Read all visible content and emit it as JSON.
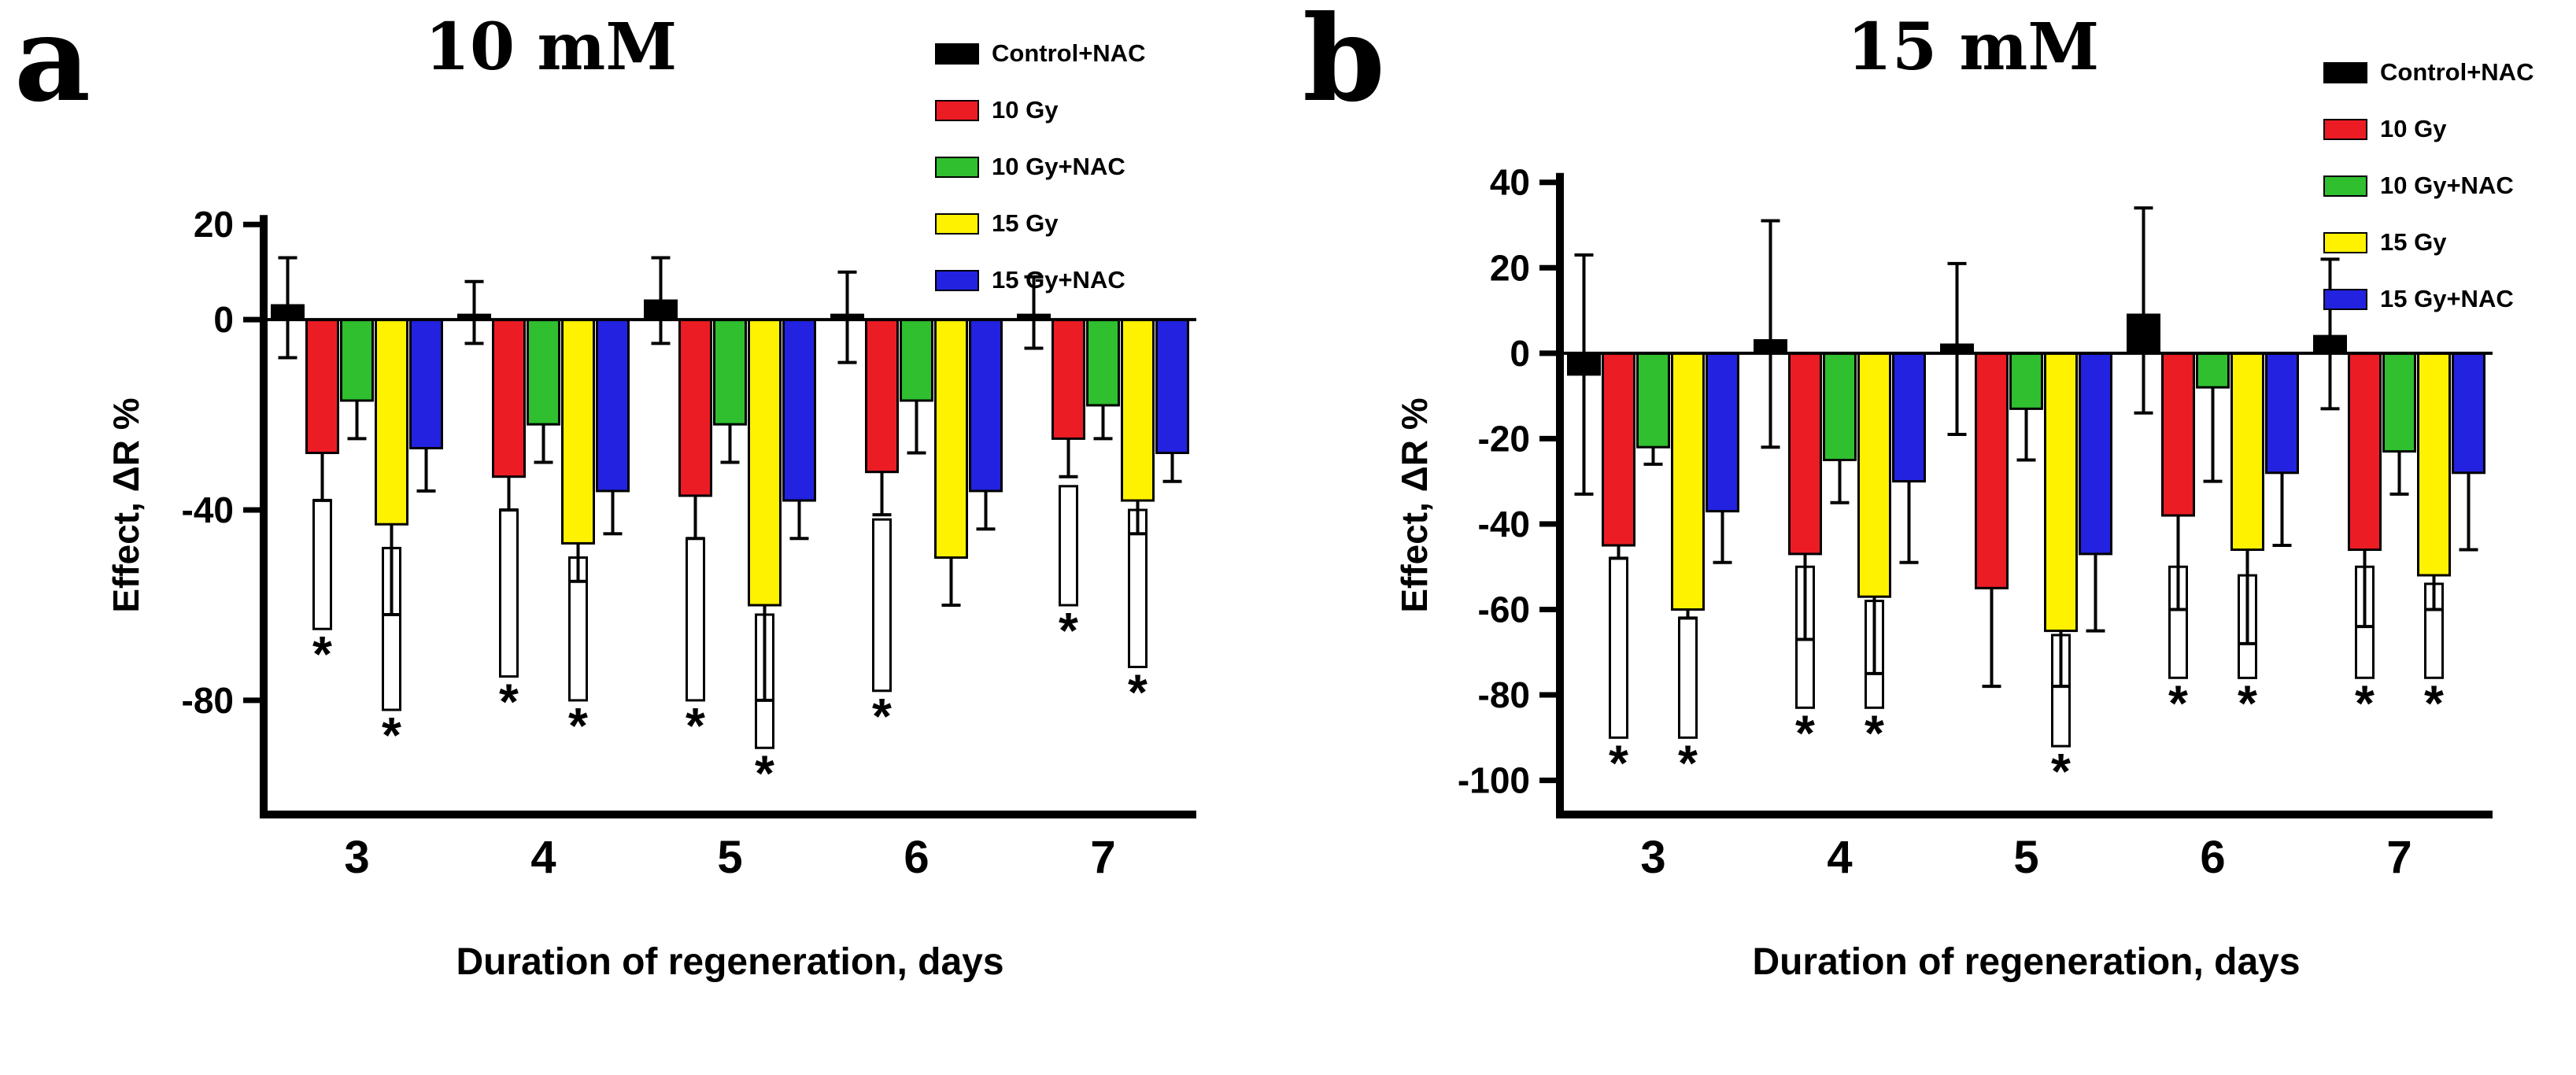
{
  "figure": {
    "legend": {
      "items": [
        {
          "label": "Control+NAC",
          "color": "#000000"
        },
        {
          "label": "10 Gy",
          "color": "#ec1c24"
        },
        {
          "label": "10 Gy+NAC",
          "color": "#2fbf2f"
        },
        {
          "label": "15 Gy",
          "color": "#fff200"
        },
        {
          "label": "15 Gy+NAC",
          "color": "#2222e0"
        }
      ]
    }
  },
  "chart_data": [
    {
      "type": "bar",
      "panel_letter": "a",
      "title": "10 mM",
      "xlabel": "Duration of regeneration, days",
      "ylabel": "Effect, ΔR %",
      "categories": [
        "3",
        "4",
        "5",
        "6",
        "7"
      ],
      "ylim": [
        -104,
        25
      ],
      "yticks": [
        20,
        0,
        -40,
        -80
      ],
      "grid": false,
      "legend_position": "top-right",
      "series": [
        {
          "name": "Control+NAC",
          "color": "#000000",
          "values": [
            3,
            1,
            4,
            1,
            1
          ],
          "err_low": [
            -8,
            -5,
            -5,
            -9,
            -6
          ],
          "err_high": [
            13,
            8,
            13,
            10,
            9
          ]
        },
        {
          "name": "10 Gy",
          "color": "#ec1c24",
          "values": [
            -28,
            -33,
            -37,
            -32,
            -25
          ],
          "err_low": [
            -38,
            -40,
            -46,
            -41,
            -33
          ]
        },
        {
          "name": "10 Gy+NAC",
          "color": "#2fbf2f",
          "values": [
            -17,
            -22,
            -22,
            -17,
            -18
          ],
          "err_low": [
            -25,
            -30,
            -30,
            -28,
            -25
          ]
        },
        {
          "name": "15 Gy",
          "color": "#fff200",
          "values": [
            -43,
            -47,
            -60,
            -50,
            -38
          ],
          "err_low": [
            -62,
            -55,
            -80,
            -60,
            -45
          ]
        },
        {
          "name": "15 Gy+NAC",
          "color": "#2222e0",
          "values": [
            -27,
            -36,
            -38,
            -36,
            -28
          ],
          "err_low": [
            -36,
            -45,
            -46,
            -44,
            -34
          ]
        }
      ],
      "significance": [
        {
          "group": 0,
          "offset": -1,
          "from": -38,
          "to": -65,
          "label": "*"
        },
        {
          "group": 0,
          "offset": 1,
          "from": -48,
          "to": -82,
          "label": "*"
        },
        {
          "group": 1,
          "offset": -1,
          "from": -40,
          "to": -75,
          "label": "*"
        },
        {
          "group": 1,
          "offset": 1,
          "from": -50,
          "to": -80,
          "label": "*"
        },
        {
          "group": 2,
          "offset": -1,
          "from": -46,
          "to": -80,
          "label": "*"
        },
        {
          "group": 2,
          "offset": 1,
          "from": -62,
          "to": -90,
          "label": "*"
        },
        {
          "group": 3,
          "offset": -1,
          "from": -42,
          "to": -78,
          "label": "*"
        },
        {
          "group": 4,
          "offset": -1,
          "from": -35,
          "to": -60,
          "label": "*"
        },
        {
          "group": 4,
          "offset": 1,
          "from": -40,
          "to": -73,
          "label": "*"
        }
      ]
    },
    {
      "type": "bar",
      "panel_letter": "b",
      "title": "15 mM",
      "xlabel": "Duration of regeneration, days",
      "ylabel": "Effect, ΔR %",
      "categories": [
        "3",
        "4",
        "5",
        "6",
        "7"
      ],
      "ylim": [
        -108,
        44
      ],
      "yticks": [
        40,
        20,
        0,
        -20,
        -40,
        -60,
        -80,
        -100
      ],
      "grid": false,
      "legend_position": "top-right",
      "series": [
        {
          "name": "Control+NAC",
          "color": "#000000",
          "values": [
            -5,
            3,
            2,
            9,
            4
          ],
          "err_low": [
            -33,
            -22,
            -19,
            -14,
            -13
          ],
          "err_high": [
            23,
            31,
            21,
            34,
            22
          ]
        },
        {
          "name": "10 Gy",
          "color": "#ec1c24",
          "values": [
            -45,
            -47,
            -55,
            -38,
            -46
          ],
          "err_low": [
            -48,
            -67,
            -78,
            -60,
            -64
          ]
        },
        {
          "name": "10 Gy+NAC",
          "color": "#2fbf2f",
          "values": [
            -22,
            -25,
            -13,
            -8,
            -23
          ],
          "err_low": [
            -26,
            -35,
            -25,
            -30,
            -33
          ]
        },
        {
          "name": "15 Gy",
          "color": "#fff200",
          "values": [
            -60,
            -57,
            -65,
            -46,
            -52
          ],
          "err_low": [
            -62,
            -75,
            -78,
            -68,
            -60
          ]
        },
        {
          "name": "15 Gy+NAC",
          "color": "#2222e0",
          "values": [
            -37,
            -30,
            -47,
            -28,
            -28
          ],
          "err_low": [
            -49,
            -49,
            -65,
            -45,
            -46
          ]
        }
      ],
      "significance": [
        {
          "group": 0,
          "offset": -1,
          "from": -48,
          "to": -90,
          "label": "*"
        },
        {
          "group": 0,
          "offset": 1,
          "from": -62,
          "to": -90,
          "label": "*"
        },
        {
          "group": 1,
          "offset": -1,
          "from": -50,
          "to": -83,
          "label": "*"
        },
        {
          "group": 1,
          "offset": 1,
          "from": -58,
          "to": -83,
          "label": "*"
        },
        {
          "group": 2,
          "offset": 1,
          "from": -66,
          "to": -92,
          "label": "*"
        },
        {
          "group": 3,
          "offset": -1,
          "from": -50,
          "to": -76,
          "label": "*"
        },
        {
          "group": 3,
          "offset": 1,
          "from": -52,
          "to": -76,
          "label": "*"
        },
        {
          "group": 4,
          "offset": -1,
          "from": -50,
          "to": -76,
          "label": "*"
        },
        {
          "group": 4,
          "offset": 1,
          "from": -54,
          "to": -76,
          "label": "*"
        }
      ]
    }
  ]
}
